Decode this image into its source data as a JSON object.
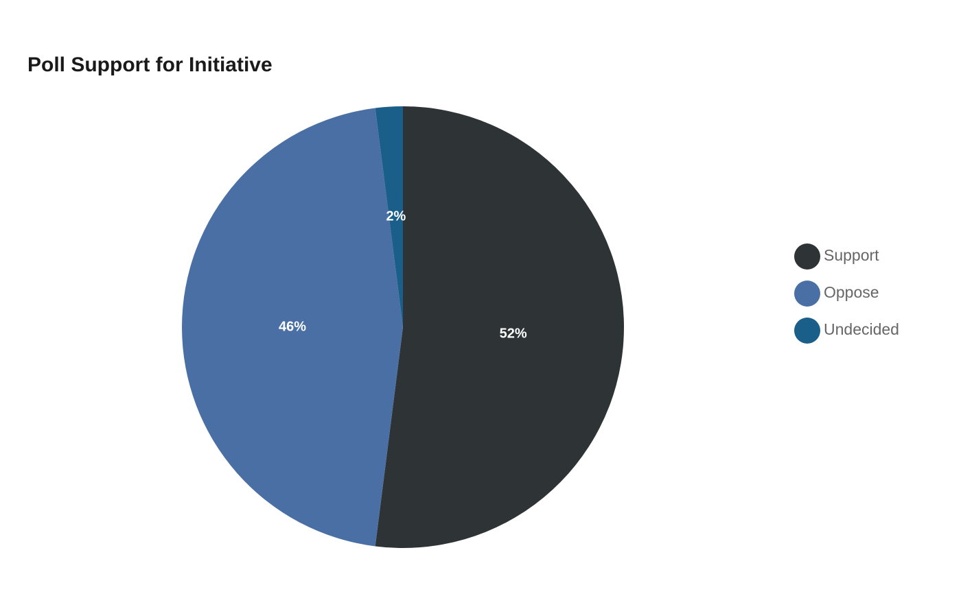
{
  "chart_data": {
    "type": "pie",
    "title": "Poll Support for Initiative",
    "categories": [
      "Support",
      "Oppose",
      "Undecided"
    ],
    "values": [
      52,
      46,
      2
    ],
    "value_labels": [
      "52%",
      "46%",
      "2%"
    ],
    "colors": [
      "#2e3436",
      "#4a6fa5",
      "#1a5f8a"
    ]
  }
}
